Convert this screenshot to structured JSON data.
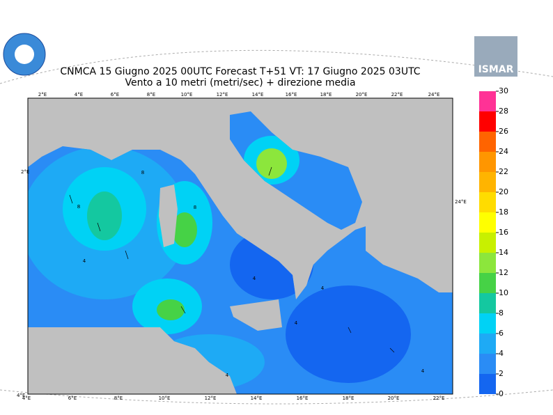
{
  "header": {
    "title": "CNMCA 15   Giugno  2025 00UTC Forecast T+51 VT: 17   Giugno  2025 03UTC",
    "subtitle": "Vento a 10 metri (metri/sec) + direzione media"
  },
  "logo": {
    "text": "ISMAR"
  },
  "map": {
    "top_lon_labels": [
      "2°E",
      "4°E",
      "6°E",
      "8°E",
      "10°E",
      "12°E",
      "14°E",
      "16°E",
      "18°E",
      "20°E",
      "22°E",
      "24°E"
    ],
    "bottom_lon_labels": [
      "4°E",
      "6°E",
      "8°E",
      "10°E",
      "12°E",
      "14°E",
      "16°E",
      "18°E",
      "20°E",
      "22°E"
    ],
    "left_label": "2°E",
    "right_label": "24°E",
    "corner_label": "4°E",
    "contour_labels": [
      "8",
      "8",
      "8",
      "4",
      "4",
      "4",
      "4",
      "4",
      "4"
    ]
  },
  "colorbar": {
    "levels": [
      0,
      2,
      4,
      6,
      8,
      10,
      12,
      14,
      16,
      18,
      20,
      22,
      24,
      26,
      28,
      30
    ],
    "colors": [
      "#1466f0",
      "#2a8cf5",
      "#1eaaf5",
      "#00d2f5",
      "#14c8a0",
      "#46d246",
      "#8ce63c",
      "#c8f000",
      "#ffff00",
      "#ffdc00",
      "#ffb400",
      "#ff9600",
      "#ff6400",
      "#ff0000",
      "#ff3296"
    ]
  }
}
